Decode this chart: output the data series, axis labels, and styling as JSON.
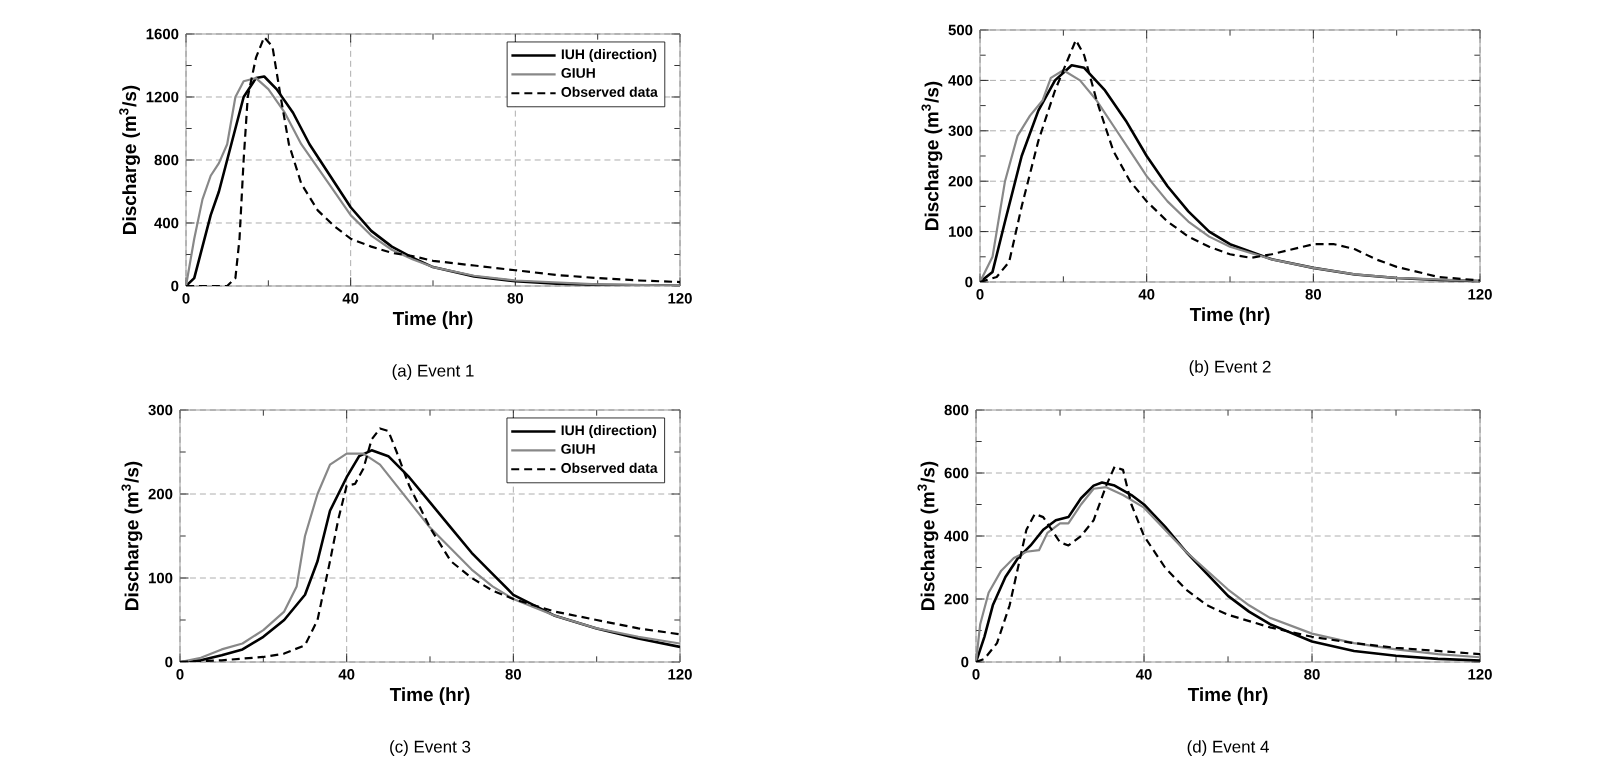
{
  "chart_data": [
    {
      "type": "line",
      "title": "(a) Event 1",
      "xlabel": "Time (hr)",
      "ylabel": "Discharge (m$^{3}$/s)",
      "xlim": [
        0,
        120
      ],
      "ylim": [
        0,
        1600
      ],
      "xticks": [
        0,
        40,
        80,
        120
      ],
      "yticks": [
        0,
        400,
        800,
        1200,
        1600
      ],
      "grid": true,
      "legend": "top right",
      "series": [
        {
          "name": "IUH (direction)",
          "color": "#000000",
          "line_style": "solid",
          "x": [
            0,
            2,
            4,
            6,
            8,
            10,
            12,
            14,
            17,
            19,
            22,
            26,
            30,
            35,
            40,
            45,
            50,
            55,
            60,
            70,
            80,
            90,
            100,
            120
          ],
          "values": [
            0,
            50,
            250,
            450,
            600,
            800,
            1000,
            1200,
            1320,
            1330,
            1250,
            1100,
            900,
            700,
            500,
            350,
            250,
            180,
            120,
            60,
            30,
            15,
            8,
            2
          ]
        },
        {
          "name": "GIUH",
          "color": "#888888",
          "line_style": "solid",
          "x": [
            0,
            2,
            4,
            6,
            8,
            10,
            12,
            14,
            17,
            20,
            24,
            28,
            32,
            36,
            40,
            45,
            50,
            55,
            60,
            70,
            80,
            100,
            120
          ],
          "values": [
            0,
            300,
            550,
            700,
            780,
            900,
            1200,
            1300,
            1320,
            1250,
            1100,
            900,
            750,
            600,
            450,
            320,
            230,
            170,
            120,
            65,
            35,
            10,
            3
          ]
        },
        {
          "name": "Observed data",
          "color": "#000000",
          "line_style": "dashed",
          "x": [
            0,
            10,
            12,
            13,
            14,
            15,
            17,
            19,
            21,
            23,
            25,
            28,
            32,
            36,
            40,
            45,
            50,
            55,
            60,
            70,
            80,
            90,
            100,
            110,
            120
          ],
          "values": [
            0,
            0,
            50,
            300,
            800,
            1200,
            1450,
            1580,
            1520,
            1200,
            900,
            650,
            480,
            380,
            300,
            250,
            210,
            190,
            160,
            130,
            100,
            70,
            50,
            35,
            25
          ]
        }
      ]
    },
    {
      "type": "line",
      "title": "(b) Event 2",
      "xlabel": "Time (hr)",
      "ylabel": "Discharge (m$^{3}$/s)",
      "xlim": [
        0,
        120
      ],
      "ylim": [
        0,
        500
      ],
      "xticks": [
        0,
        40,
        80,
        120
      ],
      "yticks": [
        0,
        100,
        200,
        300,
        400,
        500
      ],
      "grid": true,
      "series": [
        {
          "color": "#000000",
          "line_style": "solid",
          "x": [
            0,
            3,
            6,
            10,
            14,
            18,
            22,
            25,
            30,
            35,
            40,
            45,
            50,
            55,
            60,
            70,
            80,
            90,
            100,
            110,
            120
          ],
          "values": [
            0,
            20,
            120,
            250,
            340,
            400,
            430,
            425,
            380,
            320,
            250,
            190,
            140,
            100,
            75,
            45,
            28,
            15,
            8,
            4,
            2
          ]
        },
        {
          "color": "#888888",
          "line_style": "solid",
          "x": [
            0,
            3,
            6,
            9,
            12,
            15,
            17,
            20,
            24,
            28,
            32,
            36,
            40,
            45,
            50,
            55,
            60,
            70,
            80,
            90,
            100,
            120
          ],
          "values": [
            0,
            50,
            200,
            290,
            330,
            360,
            405,
            420,
            400,
            360,
            310,
            260,
            210,
            160,
            120,
            90,
            70,
            45,
            28,
            15,
            8,
            2
          ]
        },
        {
          "color": "#000000",
          "line_style": "dashed",
          "x": [
            0,
            4,
            7,
            10,
            14,
            18,
            21,
            23,
            25,
            28,
            32,
            36,
            40,
            45,
            50,
            55,
            60,
            65,
            70,
            75,
            80,
            85,
            90,
            95,
            100,
            110,
            120
          ],
          "values": [
            0,
            10,
            40,
            150,
            280,
            380,
            440,
            480,
            450,
            360,
            260,
            200,
            160,
            120,
            90,
            70,
            55,
            48,
            55,
            65,
            75,
            75,
            65,
            45,
            30,
            10,
            3
          ]
        }
      ]
    },
    {
      "type": "line",
      "title": "(c) Event 3",
      "xlabel": "Time (hr)",
      "ylabel": "Discharge (m$^{3}$/s)",
      "xlim": [
        0,
        120
      ],
      "ylim": [
        0,
        300
      ],
      "xticks": [
        0,
        40,
        80,
        120
      ],
      "yticks": [
        0,
        100,
        200,
        300
      ],
      "grid": true,
      "legend": "top right",
      "series": [
        {
          "name": "IUH (direction)",
          "color": "#000000",
          "line_style": "solid",
          "x": [
            0,
            5,
            10,
            15,
            20,
            25,
            30,
            33,
            36,
            40,
            43,
            46,
            50,
            55,
            60,
            65,
            70,
            75,
            80,
            90,
            100,
            110,
            120
          ],
          "values": [
            0,
            2,
            8,
            15,
            30,
            50,
            80,
            120,
            180,
            220,
            245,
            252,
            245,
            220,
            190,
            160,
            130,
            105,
            80,
            55,
            40,
            28,
            18
          ]
        },
        {
          "name": "GIUH",
          "color": "#888888",
          "line_style": "solid",
          "x": [
            0,
            5,
            10,
            15,
            20,
            25,
            28,
            30,
            33,
            36,
            40,
            44,
            48,
            52,
            56,
            60,
            65,
            70,
            75,
            80,
            90,
            100,
            110,
            120
          ],
          "values": [
            0,
            5,
            15,
            22,
            38,
            60,
            90,
            150,
            200,
            235,
            248,
            248,
            235,
            210,
            185,
            160,
            135,
            110,
            90,
            75,
            55,
            40,
            30,
            22
          ]
        },
        {
          "name": "Observed data",
          "color": "#000000",
          "line_style": "dashed",
          "x": [
            0,
            10,
            15,
            20,
            25,
            30,
            33,
            36,
            38,
            40,
            42,
            44,
            46,
            48,
            50,
            52,
            55,
            60,
            65,
            70,
            75,
            80,
            90,
            100,
            110,
            120
          ],
          "values": [
            0,
            2,
            4,
            6,
            10,
            20,
            50,
            120,
            170,
            210,
            212,
            230,
            265,
            278,
            275,
            250,
            210,
            160,
            120,
            100,
            85,
            75,
            60,
            50,
            40,
            33
          ]
        }
      ]
    },
    {
      "type": "line",
      "title": "(d) Event 4",
      "xlabel": "Time (hr)",
      "ylabel": "Discharge (m$^{3}$/s)",
      "xlim": [
        0,
        120
      ],
      "ylim": [
        0,
        800
      ],
      "xticks": [
        0,
        40,
        80,
        120
      ],
      "yticks": [
        0,
        200,
        400,
        600,
        800
      ],
      "grid": true,
      "series": [
        {
          "color": "#000000",
          "line_style": "solid",
          "x": [
            0,
            2,
            4,
            7,
            10,
            13,
            16,
            19,
            22,
            25,
            28,
            30,
            33,
            37,
            40,
            45,
            50,
            55,
            60,
            65,
            70,
            80,
            90,
            100,
            110,
            120
          ],
          "values": [
            0,
            80,
            180,
            270,
            330,
            370,
            420,
            450,
            460,
            520,
            560,
            570,
            560,
            530,
            500,
            430,
            350,
            280,
            210,
            160,
            120,
            65,
            35,
            20,
            10,
            5
          ]
        },
        {
          "color": "#888888",
          "line_style": "solid",
          "x": [
            0,
            1,
            3,
            6,
            9,
            12,
            15,
            17,
            20,
            22,
            25,
            28,
            31,
            35,
            40,
            45,
            50,
            55,
            60,
            65,
            70,
            80,
            90,
            100,
            110,
            120
          ],
          "values": [
            0,
            120,
            220,
            290,
            330,
            350,
            355,
            410,
            440,
            440,
            500,
            550,
            555,
            530,
            490,
            420,
            350,
            290,
            230,
            180,
            140,
            90,
            60,
            40,
            25,
            15
          ]
        },
        {
          "color": "#000000",
          "line_style": "dashed",
          "x": [
            0,
            2,
            5,
            8,
            10,
            12,
            14,
            16,
            18,
            20,
            22,
            25,
            28,
            31,
            33,
            35,
            37,
            40,
            45,
            50,
            55,
            60,
            70,
            80,
            90,
            100,
            110,
            120
          ],
          "values": [
            0,
            10,
            60,
            180,
            300,
            420,
            470,
            460,
            420,
            380,
            370,
            400,
            450,
            560,
            620,
            610,
            500,
            400,
            300,
            230,
            180,
            150,
            110,
            80,
            60,
            45,
            35,
            25
          ]
        }
      ]
    }
  ]
}
